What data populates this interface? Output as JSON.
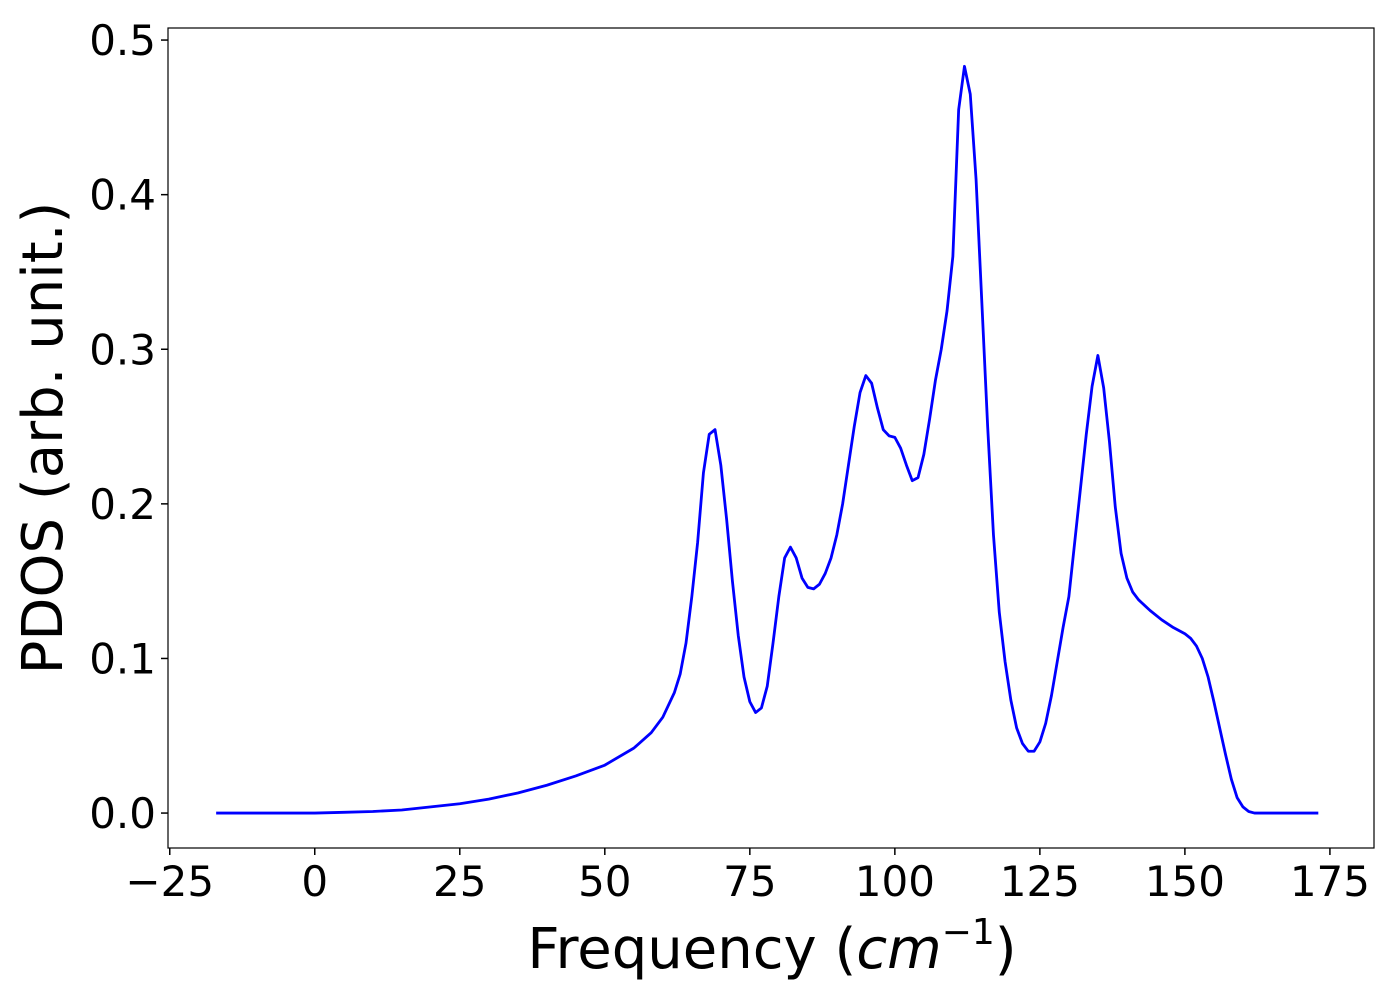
{
  "chart_data": {
    "type": "line",
    "x_label": [
      "Frequency (",
      "cm",
      "−1",
      ")"
    ],
    "y_label": "PDOS (arb. unit.)",
    "x": [
      -17,
      -10,
      -5,
      0,
      5,
      10,
      15,
      20,
      25,
      30,
      35,
      40,
      45,
      50,
      55,
      58,
      60,
      62,
      63,
      64,
      65,
      66,
      67,
      68,
      69,
      70,
      71,
      72,
      73,
      74,
      75,
      76,
      77,
      78,
      79,
      80,
      81,
      82,
      83,
      84,
      85,
      86,
      87,
      88,
      89,
      90,
      91,
      92,
      93,
      94,
      95,
      96,
      97,
      98,
      99,
      100,
      101,
      102,
      103,
      104,
      105,
      106,
      107,
      108,
      109,
      110,
      111,
      112,
      113,
      114,
      115,
      116,
      117,
      118,
      119,
      120,
      121,
      122,
      123,
      124,
      125,
      126,
      127,
      128,
      129,
      130,
      131,
      132,
      133,
      134,
      135,
      136,
      137,
      138,
      139,
      140,
      141,
      142,
      144,
      146,
      148,
      150,
      151,
      152,
      153,
      154,
      155,
      156,
      157,
      158,
      159,
      160,
      161,
      162,
      173
    ],
    "series": [
      {
        "name": "PDOS",
        "color": "#0000ff",
        "values": [
          0,
          0,
          0,
          0,
          0.0005,
          0.001,
          0.002,
          0.004,
          0.006,
          0.009,
          0.013,
          0.018,
          0.024,
          0.031,
          0.042,
          0.052,
          0.062,
          0.078,
          0.09,
          0.11,
          0.14,
          0.175,
          0.22,
          0.245,
          0.248,
          0.225,
          0.19,
          0.15,
          0.115,
          0.088,
          0.072,
          0.065,
          0.068,
          0.082,
          0.11,
          0.14,
          0.165,
          0.172,
          0.165,
          0.152,
          0.146,
          0.145,
          0.148,
          0.155,
          0.165,
          0.18,
          0.2,
          0.225,
          0.25,
          0.272,
          0.283,
          0.278,
          0.262,
          0.248,
          0.244,
          0.243,
          0.236,
          0.225,
          0.215,
          0.217,
          0.232,
          0.255,
          0.28,
          0.3,
          0.325,
          0.36,
          0.455,
          0.483,
          0.465,
          0.41,
          0.33,
          0.25,
          0.18,
          0.13,
          0.098,
          0.073,
          0.055,
          0.045,
          0.04,
          0.04,
          0.046,
          0.058,
          0.076,
          0.098,
          0.12,
          0.14,
          0.175,
          0.21,
          0.245,
          0.276,
          0.296,
          0.275,
          0.24,
          0.198,
          0.168,
          0.152,
          0.143,
          0.138,
          0.131,
          0.125,
          0.12,
          0.116,
          0.113,
          0.108,
          0.1,
          0.088,
          0.072,
          0.055,
          0.038,
          0.022,
          0.01,
          0.004,
          0.001,
          0,
          0
        ]
      }
    ],
    "xlim": [
      -25.3,
      182.6
    ],
    "ylim": [
      -0.0226,
      0.5078
    ],
    "xticks": [
      {
        "value": -25,
        "label": "−25"
      },
      0,
      25,
      50,
      75,
      100,
      125,
      150,
      175
    ],
    "yticks": [
      {
        "value": 0,
        "label": "0.0"
      },
      0.1,
      0.2,
      0.3,
      0.4,
      0.5
    ],
    "grid": false
  }
}
